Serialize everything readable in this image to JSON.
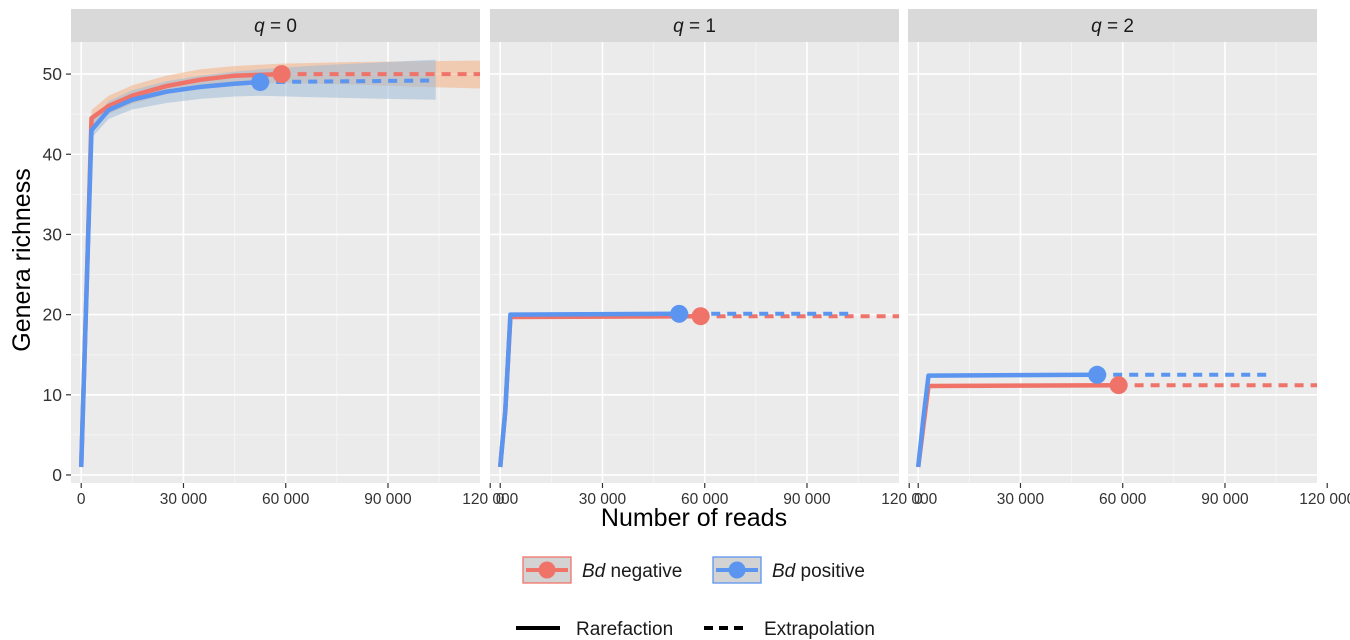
{
  "chart_data": {
    "type": "line",
    "xlabel": "Number of reads",
    "ylabel": "Genera richness",
    "xlim": [
      -3000,
      117000
    ],
    "ylim": [
      -1,
      54
    ],
    "x_ticks": [
      0,
      30000,
      60000,
      90000,
      120000
    ],
    "x_tick_labels": [
      "0",
      "30 000",
      "60 000",
      "90 000",
      "120 000"
    ],
    "y_ticks": [
      0,
      10,
      20,
      30,
      40,
      50
    ],
    "y_tick_labels": [
      "0",
      "10",
      "20",
      "30",
      "40",
      "50"
    ],
    "grid": true,
    "legend_position": "bottom",
    "legend_groups": [
      {
        "items": [
          {
            "prefix": "Bd",
            "suffix": " negative",
            "color": "#F0736A"
          },
          {
            "prefix": "Bd",
            "suffix": " positive",
            "color": "#5B95F0"
          }
        ]
      },
      {
        "items": [
          {
            "label": "Rarefaction",
            "linetype": "solid"
          },
          {
            "label": "Extrapolation",
            "linetype": "dashed"
          }
        ]
      }
    ],
    "panels": [
      {
        "strip": "q = 0",
        "strip_var": "q",
        "strip_value": " = 0",
        "series": [
          {
            "name": "Bd negative",
            "color": "#F0736A",
            "ribbon_color": "#F4B183",
            "rarefaction": [
              [
                0,
                1
              ],
              [
                1500,
                22
              ],
              [
                3000,
                44.5
              ],
              [
                8000,
                46
              ],
              [
                15000,
                47.3
              ],
              [
                25000,
                48.5
              ],
              [
                35000,
                49.3
              ],
              [
                45000,
                49.8
              ],
              [
                58800,
                50
              ]
            ],
            "extrapolation": [
              [
                58800,
                50
              ],
              [
                117000,
                50
              ]
            ],
            "ribbon_lower": [
              [
                3000,
                43.5
              ],
              [
                8000,
                45
              ],
              [
                15000,
                46.3
              ],
              [
                25000,
                47.5
              ],
              [
                35000,
                48.2
              ],
              [
                45000,
                48.6
              ],
              [
                58800,
                48.9
              ],
              [
                80000,
                48.7
              ],
              [
                100000,
                48.4
              ],
              [
                117000,
                48.2
              ]
            ],
            "ribbon_upper": [
              [
                3000,
                45.5
              ],
              [
                8000,
                47.3
              ],
              [
                15000,
                48.6
              ],
              [
                25000,
                49.8
              ],
              [
                35000,
                50.6
              ],
              [
                45000,
                51
              ],
              [
                58800,
                51.3
              ],
              [
                80000,
                51.5
              ],
              [
                100000,
                51.6
              ],
              [
                117000,
                51.7
              ]
            ],
            "observed": [
              58800,
              50
            ]
          },
          {
            "name": "Bd positive",
            "color": "#5B95F0",
            "ribbon_color": "#9EBBD7",
            "rarefaction": [
              [
                0,
                1
              ],
              [
                1500,
                22
              ],
              [
                3000,
                43
              ],
              [
                8000,
                45.5
              ],
              [
                15000,
                46.8
              ],
              [
                25000,
                47.8
              ],
              [
                35000,
                48.4
              ],
              [
                45000,
                48.8
              ],
              [
                52500,
                49
              ]
            ],
            "extrapolation": [
              [
                52500,
                49
              ],
              [
                104000,
                49.2
              ]
            ],
            "ribbon_lower": [
              [
                3000,
                42
              ],
              [
                8000,
                44.4
              ],
              [
                15000,
                45.6
              ],
              [
                25000,
                46.4
              ],
              [
                35000,
                46.9
              ],
              [
                45000,
                47.2
              ],
              [
                52500,
                47.3
              ],
              [
                70000,
                47.1
              ],
              [
                90000,
                46.9
              ],
              [
                104000,
                46.8
              ]
            ],
            "ribbon_upper": [
              [
                3000,
                44
              ],
              [
                8000,
                46.6
              ],
              [
                15000,
                48
              ],
              [
                25000,
                49.1
              ],
              [
                35000,
                49.8
              ],
              [
                45000,
                50.3
              ],
              [
                52500,
                50.6
              ],
              [
                70000,
                51.1
              ],
              [
                90000,
                51.5
              ],
              [
                104000,
                51.8
              ]
            ],
            "observed": [
              52500,
              49
            ]
          }
        ]
      },
      {
        "strip": "q = 1",
        "strip_var": "q",
        "strip_value": " = 1",
        "series": [
          {
            "name": "Bd negative",
            "color": "#F0736A",
            "rarefaction": [
              [
                0,
                1
              ],
              [
                1500,
                8
              ],
              [
                3000,
                19.7
              ],
              [
                58800,
                19.8
              ]
            ],
            "extrapolation": [
              [
                58800,
                19.8
              ],
              [
                117000,
                19.8
              ]
            ],
            "observed": [
              58800,
              19.8
            ]
          },
          {
            "name": "Bd positive",
            "color": "#5B95F0",
            "rarefaction": [
              [
                0,
                1
              ],
              [
                1500,
                8
              ],
              [
                3000,
                20
              ],
              [
                52500,
                20.1
              ]
            ],
            "extrapolation": [
              [
                52500,
                20.1
              ],
              [
                104000,
                20.1
              ]
            ],
            "observed": [
              52500,
              20.1
            ]
          }
        ]
      },
      {
        "strip": "q = 2",
        "strip_var": "q",
        "strip_value": " = 2",
        "series": [
          {
            "name": "Bd negative",
            "color": "#F0736A",
            "rarefaction": [
              [
                0,
                1
              ],
              [
                1500,
                6
              ],
              [
                3000,
                11.1
              ],
              [
                58800,
                11.2
              ]
            ],
            "extrapolation": [
              [
                58800,
                11.2
              ],
              [
                117000,
                11.2
              ]
            ],
            "observed": [
              58800,
              11.2
            ]
          },
          {
            "name": "Bd positive",
            "color": "#5B95F0",
            "rarefaction": [
              [
                0,
                1
              ],
              [
                1500,
                7
              ],
              [
                3000,
                12.4
              ],
              [
                52500,
                12.5
              ]
            ],
            "extrapolation": [
              [
                52500,
                12.5
              ],
              [
                104000,
                12.5
              ]
            ],
            "observed": [
              52500,
              12.5
            ]
          }
        ]
      }
    ]
  }
}
